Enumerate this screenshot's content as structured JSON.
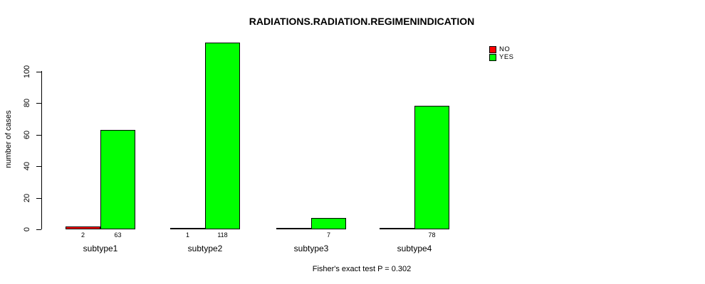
{
  "title": "RADIATIONS.RADIATION.REGIMENINDICATION",
  "subtitle": "Fisher's exact test P = 0.302",
  "y_axis_label": "number of cases",
  "chart_data": {
    "type": "bar",
    "bar_style": "grouped",
    "title": "RADIATIONS.RADIATION.REGIMENINDICATION",
    "xlabel": "",
    "ylabel": "number of cases",
    "categories": [
      "subtype1",
      "subtype2",
      "subtype3",
      "subtype4"
    ],
    "series": [
      {
        "name": "NO",
        "color": "#ff0000",
        "values": [
          2,
          1,
          0,
          0
        ],
        "value_labels": [
          "2",
          "1",
          "",
          ""
        ]
      },
      {
        "name": "YES",
        "color": "#00ff00",
        "values": [
          63,
          118,
          7,
          78
        ],
        "value_labels": [
          "63",
          "118",
          "7",
          "78"
        ]
      }
    ],
    "yticks": [
      0,
      20,
      40,
      60,
      80,
      100
    ],
    "ylim": [
      0,
      120
    ],
    "grid": false,
    "legend_position": "top-right",
    "annotation": "Fisher's exact test P = 0.302"
  }
}
